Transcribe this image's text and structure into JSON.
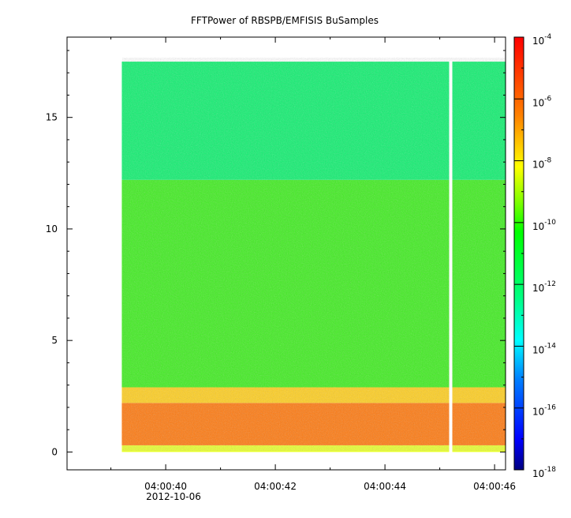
{
  "chart_data": {
    "type": "heatmap",
    "title": "FFTPower of RBSPB/EMFISIS  BuSamples",
    "xlabel": "",
    "ylabel": "",
    "x_axis": {
      "ticks": [
        "04:00:40",
        "04:00:42",
        "04:00:44",
        "04:00:46"
      ],
      "date_label": "2012-10-06",
      "range": [
        "04:00:38.2",
        "04:00:46.2"
      ]
    },
    "y_axis": {
      "ticks": [
        0,
        5,
        10,
        15
      ],
      "range": [
        -0.8,
        18.6
      ]
    },
    "colorbar": {
      "scale": "log",
      "range": [
        1e-18,
        0.0001
      ],
      "tick_labels": [
        {
          "base": "10",
          "exp": "-4"
        },
        {
          "base": "10",
          "exp": "-6"
        },
        {
          "base": "10",
          "exp": "-8"
        },
        {
          "base": "10",
          "exp": "-10"
        },
        {
          "base": "10",
          "exp": "-12"
        },
        {
          "base": "10",
          "exp": "-14"
        },
        {
          "base": "10",
          "exp": "-16"
        },
        {
          "base": "10",
          "exp": "-18"
        }
      ],
      "colors": [
        "#000080",
        "#0000ff",
        "#0080ff",
        "#00ffff",
        "#00ff80",
        "#00ff00",
        "#80ff00",
        "#ffff00",
        "#ff8000",
        "#ff0000"
      ]
    },
    "data_time_range": [
      "04:00:39.2",
      "04:00:46.2"
    ],
    "gap_time": "04:00:45.2",
    "bands": [
      {
        "y_range": [
          0.0,
          0.3
        ],
        "level": "1e-9",
        "color": "#e8ff30"
      },
      {
        "y_range": [
          0.3,
          2.2
        ],
        "level": "1e-7",
        "color": "#ff7a10"
      },
      {
        "y_range": [
          2.2,
          2.9
        ],
        "level": "1e-8",
        "color": "#ffcf20"
      },
      {
        "y_range": [
          2.9,
          12.2
        ],
        "level": "1e-10",
        "color": "#40ee20"
      },
      {
        "y_range": [
          12.2,
          17.5
        ],
        "level": "1e-11",
        "color": "#10f070"
      }
    ]
  }
}
